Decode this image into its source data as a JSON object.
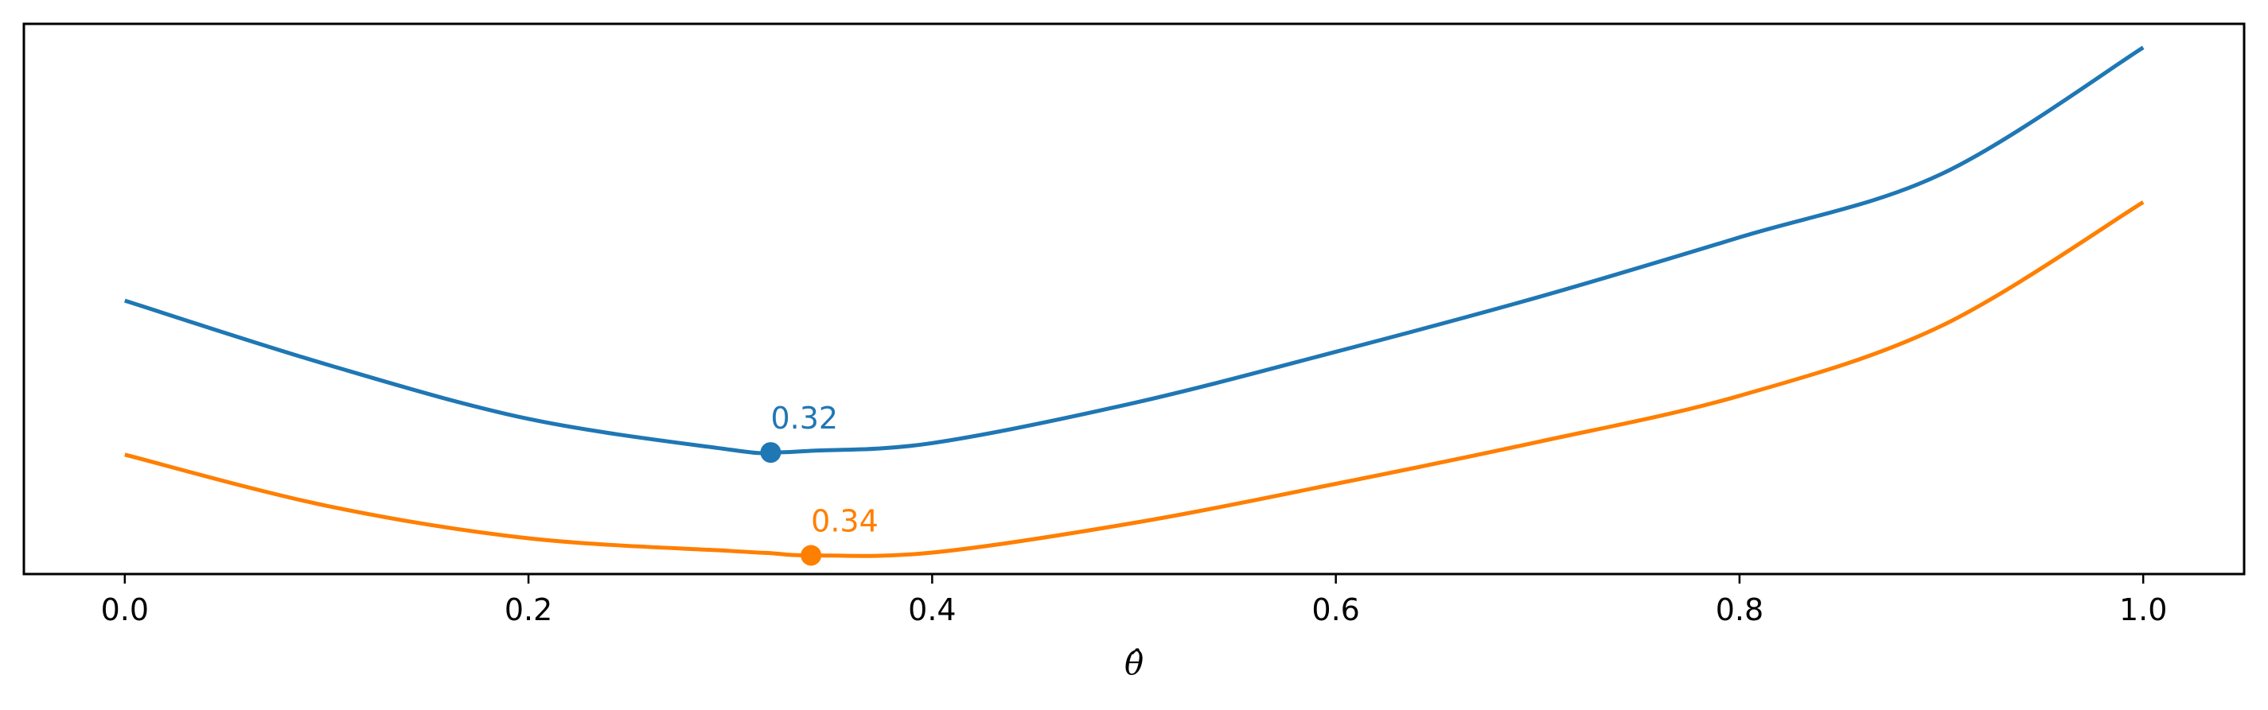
{
  "chart_data": {
    "type": "line",
    "title": "",
    "xlabel": "θ̂",
    "ylabel": "",
    "xlim": [
      -0.05,
      1.05
    ],
    "ylim": [
      0,
      1
    ],
    "xticks": [
      "0.0",
      "0.2",
      "0.4",
      "0.6",
      "0.8",
      "1.0"
    ],
    "yticks_shown": false,
    "grid": false,
    "legend": "none",
    "x": [
      0.0,
      0.1,
      0.2,
      0.3,
      0.32,
      0.34,
      0.4,
      0.5,
      0.6,
      0.7,
      0.8,
      0.9,
      1.0
    ],
    "series": [
      {
        "color": "#1f77b4",
        "values": [
          0.497,
          0.381,
          0.282,
          0.226,
          0.221,
          0.224,
          0.238,
          0.311,
          0.404,
          0.503,
          0.612,
          0.727,
          0.957
        ],
        "minimum": {
          "x": 0.32,
          "y": 0.221,
          "label": "0.32"
        }
      },
      {
        "color": "#ff7f00",
        "values": [
          0.217,
          0.124,
          0.065,
          0.042,
          0.038,
          0.034,
          0.039,
          0.093,
          0.164,
          0.24,
          0.324,
          0.451,
          0.676
        ],
        "minimum": {
          "x": 0.34,
          "y": 0.034,
          "label": "0.34"
        }
      }
    ]
  }
}
